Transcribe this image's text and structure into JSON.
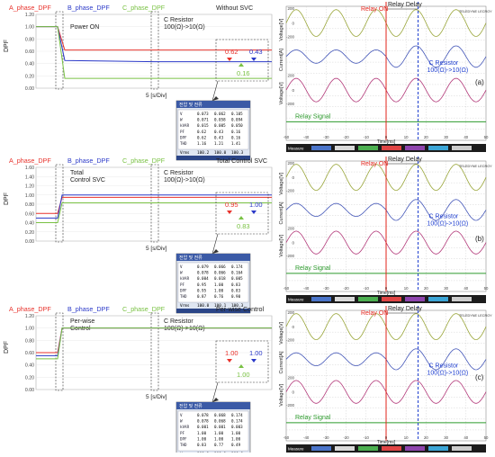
{
  "legend": {
    "a": "A_phase_DPF",
    "b": "B_phase_DPF",
    "c": "C_phase_DPF"
  },
  "colors": {
    "a": "#e8322b",
    "b": "#2a38c8",
    "c": "#79c143",
    "relay_on": "#e2231a",
    "relay_delay": "#1f3fd0",
    "voltage": "#9aa63a",
    "current": "#4356b8",
    "voltage2": "#b33a7a",
    "signal": "#2c9a2c"
  },
  "panels": [
    {
      "id": "a",
      "mode_title": "Without SVC",
      "event1": "Power ON",
      "event2_line1": "C Resistor",
      "event2_line2": "100(Ω)->10(Ω)",
      "label_a": "0.62",
      "label_b": "0.43",
      "label_c": "0.16",
      "xaxis": "5 [s/Div]",
      "yaxis": "DPF",
      "yticks": [
        "1.20",
        "1.00",
        "0.80",
        "0.60",
        "0.40",
        "0.20",
        "0.00"
      ],
      "panel_tag": "(a)",
      "meter": {
        "title": "전압 및 전류",
        "rows": [
          [
            "V",
            "0.073",
            "0.062",
            "0.105"
          ],
          [
            "W",
            "0.071",
            "0.058",
            "0.094"
          ],
          [
            "kVAR",
            "0.015",
            "0.005",
            "0.050"
          ],
          [
            "PF",
            "0.62",
            "0.43",
            "0.16"
          ],
          [
            "DPF",
            "0.62",
            "0.43",
            "0.16"
          ],
          [
            "THD",
            "1.16",
            "1.21",
            "1.41"
          ]
        ],
        "footer": [
          "Vrms",
          "100.2",
          "100.0",
          "100.3"
        ]
      }
    },
    {
      "id": "b",
      "mode_title": "Total Control SVC",
      "event1_line1": "Total",
      "event1_line2": "Control SVC",
      "event2_line1": "C Resistor",
      "event2_line2": "100(Ω)->10(Ω)",
      "label_a": "0.95",
      "label_b": "1.00",
      "label_c": "0.83",
      "xaxis": "5 [s/Div]",
      "yaxis": "DPF",
      "yticks": [
        "1.60",
        "1.40",
        "1.20",
        "1.00",
        "0.80",
        "0.60",
        "0.40",
        "0.20",
        "0.00"
      ],
      "panel_tag": "(b)",
      "meter": {
        "title": "전압 및 전류",
        "rows": [
          [
            "V",
            "0.079",
            "0.066",
            "0.174"
          ],
          [
            "W",
            "0.078",
            "0.066",
            "0.164"
          ],
          [
            "kVAR",
            "0.004",
            "0.018",
            "0.005"
          ],
          [
            "PF",
            "0.95",
            "1.00",
            "0.83"
          ],
          [
            "DPF",
            "0.95",
            "1.00",
            "0.83"
          ],
          [
            "THD",
            "0.87",
            "0.76",
            "0.90"
          ]
        ],
        "footer": [
          "Vrms",
          "100.0",
          "100.1",
          "100.3"
        ]
      }
    },
    {
      "id": "c",
      "mode_title": "Per-wise Control",
      "event1_line1": "Per-wise",
      "event1_line2": "Control",
      "event2_line1": "C Resistor",
      "event2_line2": "100(Ω)->10(Ω)",
      "label_a": "1.00",
      "label_b": "1.00",
      "label_c": "1.00",
      "xaxis": "5 [s/Div]",
      "yaxis": "DPF",
      "yticks": [
        "1.20",
        "1.00",
        "0.80",
        "0.60",
        "0.40",
        "0.20",
        "0.00"
      ],
      "panel_tag": "(c)",
      "meter": {
        "title": "전압 및 전류",
        "rows": [
          [
            "V",
            "0.078",
            "0.068",
            "0.174"
          ],
          [
            "W",
            "0.078",
            "0.068",
            "0.174"
          ],
          [
            "kVAR",
            "0.001",
            "0.001",
            "0.003"
          ],
          [
            "PF",
            "1.00",
            "1.00",
            "1.00"
          ],
          [
            "DPF",
            "1.00",
            "1.00",
            "1.00"
          ],
          [
            "THD",
            "0.83",
            "0.77",
            "0.49"
          ]
        ],
        "footer": [
          "Vrms",
          "100.1",
          "100.1",
          "100.1"
        ]
      }
    }
  ],
  "scope": {
    "relay_on": "Relay ON",
    "relay_delay": "Relay Delay",
    "c_res_line1": "C Resistor",
    "c_res_line2": "100(Ω)->10(Ω)",
    "relay_signal": "Relay Signal",
    "volt_label": "Voltage[V]",
    "curr_label": "Current[A]",
    "time_label": "Time[ms]",
    "vticks": [
      "200",
      "0",
      "-200"
    ],
    "cticks": [
      "1",
      "0",
      "-1"
    ],
    "xticks": [
      "-50",
      "-40",
      "-30",
      "-20",
      "-10",
      "0",
      "10",
      "20",
      "30",
      "40",
      "50"
    ],
    "brand": "TELEDYNE LECROY",
    "footer_label": "Measure"
  },
  "chart_data": [
    {
      "type": "line",
      "title": "Without SVC",
      "xlabel": "5 [s/Div]",
      "ylabel": "DPF",
      "ylim": [
        0,
        1.2
      ],
      "series": [
        {
          "name": "A_phase_DPF",
          "values": [
            1.0,
            1.0,
            0.62,
            0.62,
            0.62
          ]
        },
        {
          "name": "B_phase_DPF",
          "values": [
            1.0,
            1.0,
            0.45,
            0.43,
            0.43
          ]
        },
        {
          "name": "C_phase_DPF",
          "values": [
            1.0,
            1.0,
            0.16,
            0.16,
            0.16
          ]
        }
      ]
    },
    {
      "type": "line",
      "title": "Total Control SVC",
      "xlabel": "5 [s/Div]",
      "ylabel": "DPF",
      "ylim": [
        0,
        1.6
      ],
      "series": [
        {
          "name": "A_phase_DPF",
          "values": [
            0.6,
            0.95,
            0.95,
            0.95,
            0.95
          ]
        },
        {
          "name": "B_phase_DPF",
          "values": [
            0.5,
            1.0,
            1.0,
            1.0,
            1.0
          ]
        },
        {
          "name": "C_phase_DPF",
          "values": [
            0.4,
            0.83,
            0.83,
            0.83,
            0.83
          ]
        }
      ]
    },
    {
      "type": "line",
      "title": "Per-wise Control",
      "xlabel": "5 [s/Div]",
      "ylabel": "DPF",
      "ylim": [
        0,
        1.2
      ],
      "series": [
        {
          "name": "A_phase_DPF",
          "values": [
            0.6,
            1.0,
            1.0,
            1.0,
            1.0
          ]
        },
        {
          "name": "B_phase_DPF",
          "values": [
            0.55,
            1.0,
            1.0,
            1.0,
            1.0
          ]
        },
        {
          "name": "C_phase_DPF",
          "values": [
            0.5,
            1.0,
            1.0,
            1.0,
            1.0
          ]
        }
      ]
    }
  ]
}
